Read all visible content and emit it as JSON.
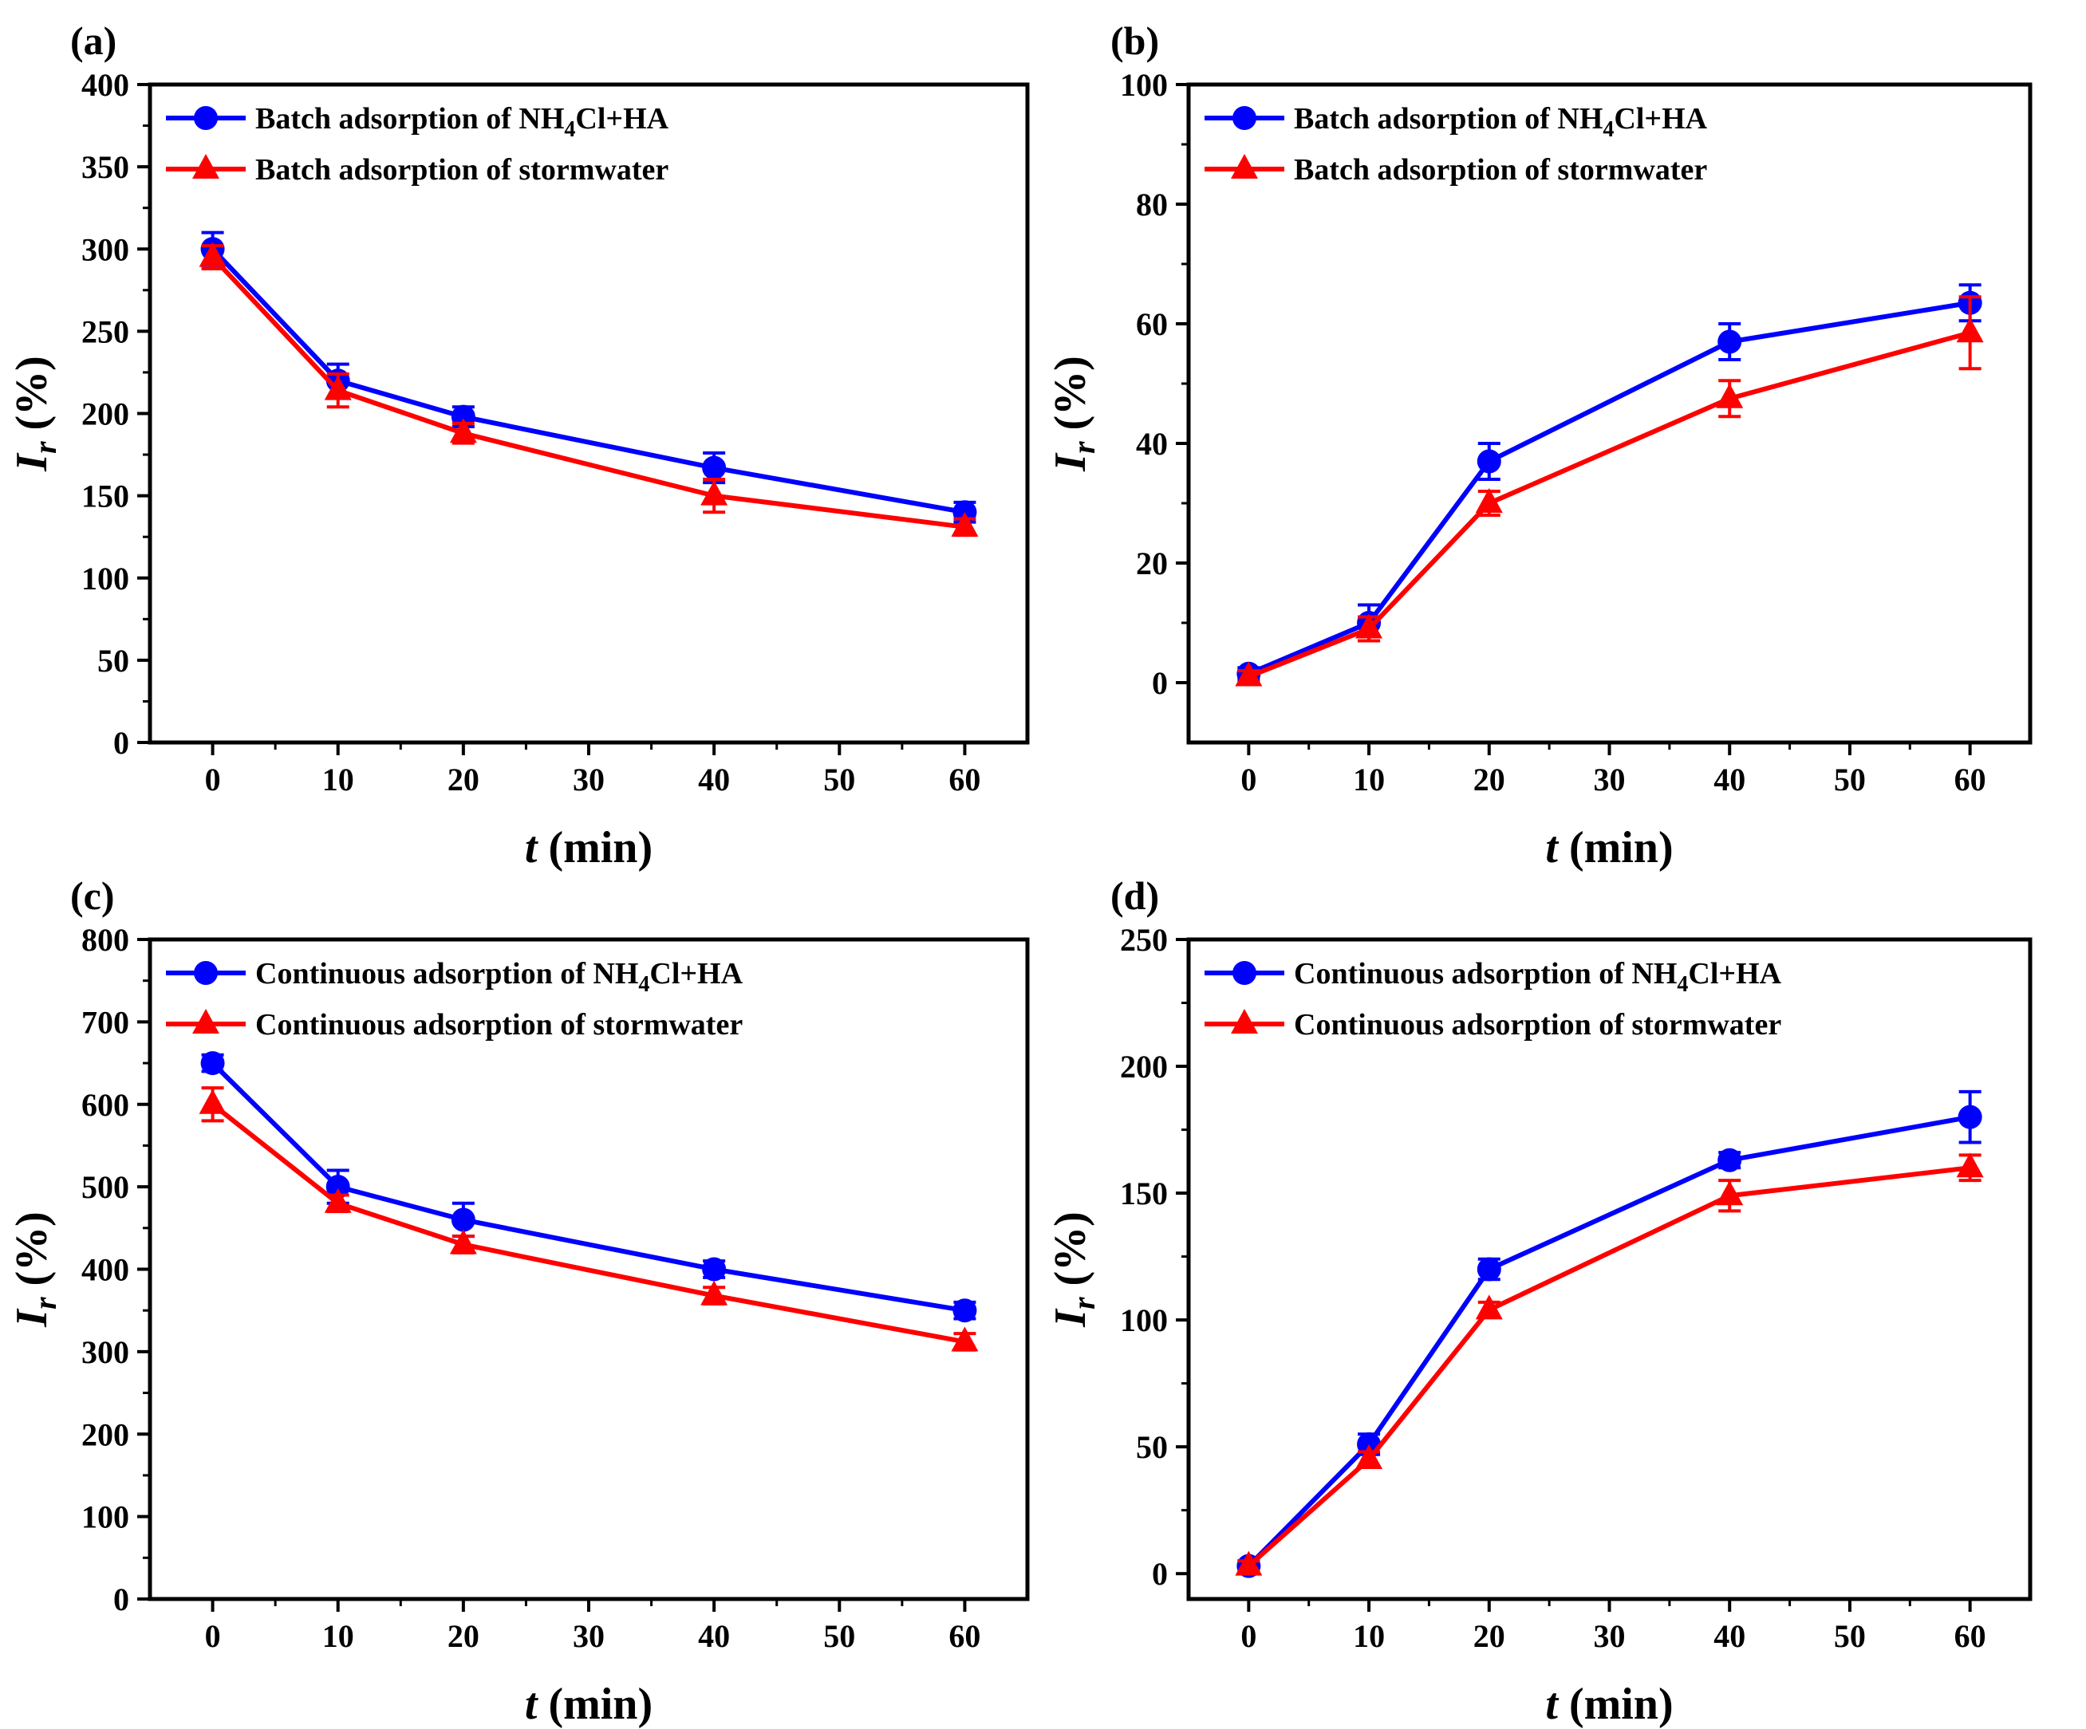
{
  "chart_data": [
    {
      "type": "line",
      "panel_label": "(a)",
      "xlabel_var": "t",
      "xlabel_unit": " (min)",
      "ylabel_var": "I",
      "ylabel_sub": "r",
      "ylabel_unit": " (%)",
      "xlim": [
        -5,
        65
      ],
      "ylim": [
        0,
        400
      ],
      "xticks": [
        0,
        10,
        20,
        30,
        40,
        50,
        60
      ],
      "yticks": [
        0,
        50,
        100,
        150,
        200,
        250,
        300,
        350,
        400
      ],
      "x": [
        0,
        10,
        20,
        40,
        60
      ],
      "legend_position": "top-left",
      "series": [
        {
          "name_pre": "Batch adsorption of NH",
          "name_sub": "4",
          "name_post": "Cl+HA",
          "color": "#0000ff",
          "marker": "circle",
          "values": [
            300,
            220,
            198,
            167,
            140
          ],
          "errors": [
            10,
            10,
            6,
            9,
            6
          ]
        },
        {
          "name_pre": "Batch adsorption of stormwater",
          "name_sub": "",
          "name_post": "",
          "color": "#ff0000",
          "marker": "triangle",
          "values": [
            295,
            214,
            188,
            150,
            131
          ],
          "errors": [
            7,
            10,
            6,
            10,
            5
          ]
        }
      ]
    },
    {
      "type": "line",
      "panel_label": "(b)",
      "xlabel_var": "t",
      "xlabel_unit": " (min)",
      "ylabel_var": "I",
      "ylabel_sub": "r",
      "ylabel_unit": " (%)",
      "xlim": [
        -5,
        65
      ],
      "ylim": [
        -10,
        100
      ],
      "xticks": [
        0,
        10,
        20,
        30,
        40,
        50,
        60
      ],
      "yticks": [
        0,
        20,
        40,
        60,
        80,
        100
      ],
      "x": [
        0,
        10,
        20,
        40,
        60
      ],
      "legend_position": "top-left",
      "series": [
        {
          "name_pre": "Batch adsorption of NH",
          "name_sub": "4",
          "name_post": "Cl+HA",
          "color": "#0000ff",
          "marker": "circle",
          "values": [
            1.5,
            10,
            37,
            57,
            63.5
          ],
          "errors": [
            1,
            3,
            3,
            3,
            3
          ]
        },
        {
          "name_pre": "Batch adsorption of stormwater",
          "name_sub": "",
          "name_post": "",
          "color": "#ff0000",
          "marker": "triangle",
          "values": [
            1,
            9,
            30,
            47.5,
            58.5
          ],
          "errors": [
            1,
            2,
            2,
            3,
            6
          ]
        }
      ]
    },
    {
      "type": "line",
      "panel_label": "(c)",
      "xlabel_var": "t",
      "xlabel_unit": " (min)",
      "ylabel_var": "I",
      "ylabel_sub": "r",
      "ylabel_unit": " (%)",
      "xlim": [
        -5,
        65
      ],
      "ylim": [
        0,
        800
      ],
      "xticks": [
        0,
        10,
        20,
        30,
        40,
        50,
        60
      ],
      "yticks": [
        0,
        100,
        200,
        300,
        400,
        500,
        600,
        700,
        800
      ],
      "x": [
        0,
        10,
        20,
        40,
        60
      ],
      "legend_position": "top-left",
      "series": [
        {
          "name_pre": "Continuous adsorption of NH",
          "name_sub": "4",
          "name_post": "Cl+HA",
          "color": "#0000ff",
          "marker": "circle",
          "values": [
            650,
            500,
            460,
            400,
            350
          ],
          "errors": [
            10,
            20,
            20,
            10,
            10
          ]
        },
        {
          "name_pre": "Continuous adsorption of stormwater",
          "name_sub": "",
          "name_post": "",
          "color": "#ff0000",
          "marker": "triangle",
          "values": [
            600,
            480,
            430,
            368,
            312
          ],
          "errors": [
            20,
            10,
            10,
            10,
            10
          ]
        }
      ]
    },
    {
      "type": "line",
      "panel_label": "(d)",
      "xlabel_var": "t",
      "xlabel_unit": " (min)",
      "ylabel_var": "I",
      "ylabel_sub": "r",
      "ylabel_unit": " (%)",
      "xlim": [
        -5,
        65
      ],
      "ylim": [
        -10,
        250
      ],
      "xticks": [
        0,
        10,
        20,
        30,
        40,
        50,
        60
      ],
      "yticks": [
        0,
        50,
        100,
        150,
        200,
        250
      ],
      "x": [
        0,
        10,
        20,
        40,
        60
      ],
      "legend_position": "top-left",
      "series": [
        {
          "name_pre": "Continuous adsorption of NH",
          "name_sub": "4",
          "name_post": "Cl+HA",
          "color": "#0000ff",
          "marker": "circle",
          "values": [
            3,
            51,
            120,
            163,
            180
          ],
          "errors": [
            2,
            4,
            4,
            3,
            10
          ]
        },
        {
          "name_pre": "Continuous adsorption of stormwater",
          "name_sub": "",
          "name_post": "",
          "color": "#ff0000",
          "marker": "triangle",
          "values": [
            3,
            45,
            104,
            149,
            160
          ],
          "errors": [
            2,
            3,
            3,
            6,
            5
          ]
        }
      ]
    }
  ]
}
